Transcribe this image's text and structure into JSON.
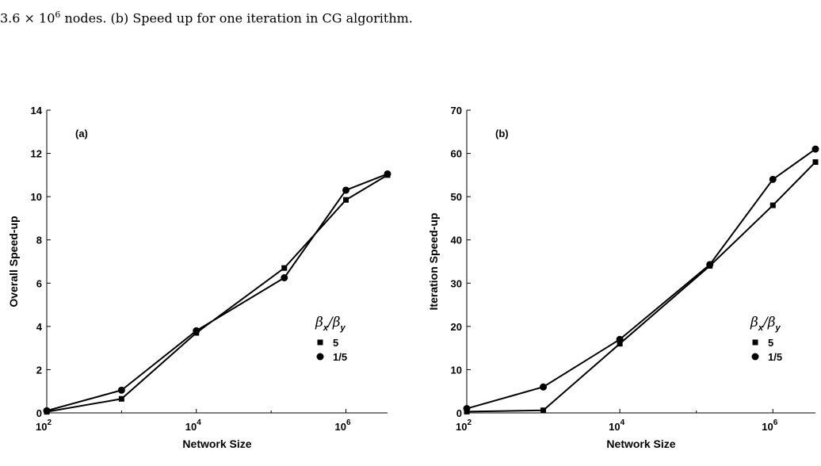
{
  "caption": {
    "prefix": "3.6 × 10",
    "exponent": "6",
    "suffix": " nodes. (b) Speed up for one iteration in CG algorithm."
  },
  "chart_data": [
    {
      "type": "line",
      "panel_label": "(a)",
      "xlabel": "Network Size",
      "ylabel": "Overall Speed-up",
      "xscale": "log",
      "xlim": [
        100,
        3600000
      ],
      "ylim": [
        0,
        14
      ],
      "yticks": [
        0,
        2,
        4,
        6,
        8,
        10,
        12,
        14
      ],
      "xticks": [
        {
          "value": 100,
          "base": "10",
          "exp": "2"
        },
        {
          "value": 10000,
          "base": "10",
          "exp": "4"
        },
        {
          "value": 1000000,
          "base": "10",
          "exp": "6"
        }
      ],
      "legend": {
        "title_main": "β",
        "title_sub_x": "x",
        "title_sub_y": "y",
        "placement": "right"
      },
      "series": [
        {
          "name": "5",
          "marker": "square",
          "x": [
            100,
            1000,
            10000,
            150000,
            1000000,
            3600000
          ],
          "y": [
            0.05,
            0.65,
            3.7,
            6.7,
            9.85,
            11.0
          ]
        },
        {
          "name": "1/5",
          "marker": "circle",
          "x": [
            100,
            1000,
            10000,
            150000,
            1000000,
            3600000
          ],
          "y": [
            0.1,
            1.05,
            3.8,
            6.25,
            10.3,
            11.05
          ]
        }
      ]
    },
    {
      "type": "line",
      "panel_label": "(b)",
      "xlabel": "Network Size",
      "ylabel": "Iteration Speed-up",
      "xscale": "log",
      "xlim": [
        100,
        3600000
      ],
      "ylim": [
        0,
        70
      ],
      "yticks": [
        0,
        10,
        20,
        30,
        40,
        50,
        60,
        70
      ],
      "xticks": [
        {
          "value": 100,
          "base": "10",
          "exp": "2"
        },
        {
          "value": 10000,
          "base": "10",
          "exp": "4"
        },
        {
          "value": 1000000,
          "base": "10",
          "exp": "6"
        }
      ],
      "legend": {
        "title_main": "β",
        "title_sub_x": "x",
        "title_sub_y": "y",
        "placement": "right"
      },
      "series": [
        {
          "name": "5",
          "marker": "square",
          "x": [
            100,
            1000,
            10000,
            150000,
            1000000,
            3600000
          ],
          "y": [
            0.3,
            0.6,
            16.0,
            34.0,
            48.0,
            58.0
          ]
        },
        {
          "name": "1/5",
          "marker": "circle",
          "x": [
            100,
            1000,
            10000,
            150000,
            1000000,
            3600000
          ],
          "y": [
            1.0,
            6.0,
            17.0,
            34.3,
            54.0,
            61.0
          ]
        }
      ]
    }
  ]
}
